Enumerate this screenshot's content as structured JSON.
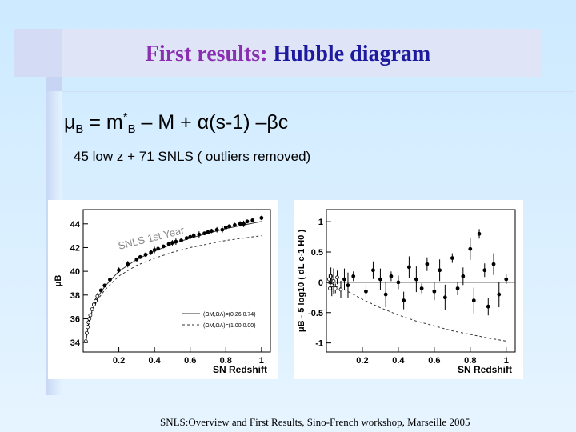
{
  "slide": {
    "title_part1": "First results:",
    "title_part2": "Hubble diagram",
    "formula": {
      "mu": "μ",
      "sub_B": "B",
      "eq": " = m",
      "sup_star": "*",
      "sub_B2": "B",
      "rest": " – M + α(s-1) –βc"
    },
    "subtitle": "45 low z + 71 SNLS ( outliers removed)",
    "footer": "SNLS:Overview and First Results, Sino-French workshop, Marseille 2005"
  },
  "chart_data": [
    {
      "type": "scatter",
      "xlabel": "SN Redshift",
      "ylabel": "μB",
      "xticks": [
        0.2,
        0.4,
        0.6,
        0.8,
        1
      ],
      "yticks": [
        34,
        36,
        38,
        40,
        42,
        44
      ],
      "xlim": [
        0,
        1.05
      ],
      "ylim": [
        33.2,
        45.2
      ],
      "annotation": "SNLS 1st Year",
      "legend_placement": "bottom-right",
      "legend": [
        "(ΩM,ΩΛ)=(0.26,0.74)",
        "(ΩM,ΩΛ)=(1.00,0.00)"
      ],
      "curves": {
        "solid_x": [
          0.015,
          0.03,
          0.05,
          0.08,
          0.12,
          0.2,
          0.3,
          0.4,
          0.5,
          0.6,
          0.7,
          0.8,
          0.9,
          1.0
        ],
        "solid_y": [
          34.0,
          35.6,
          36.7,
          37.8,
          38.7,
          40.0,
          41.0,
          41.7,
          42.3,
          42.8,
          43.2,
          43.6,
          43.9,
          44.2
        ],
        "dashed_y": [
          34.0,
          35.5,
          36.6,
          37.6,
          38.4,
          39.6,
          40.5,
          41.1,
          41.6,
          42.0,
          42.3,
          42.6,
          42.8,
          43.0
        ]
      },
      "points": {
        "x": [
          0.015,
          0.02,
          0.025,
          0.03,
          0.035,
          0.04,
          0.05,
          0.06,
          0.07,
          0.08,
          0.1,
          0.12,
          0.15,
          0.2,
          0.25,
          0.3,
          0.32,
          0.35,
          0.38,
          0.4,
          0.42,
          0.45,
          0.48,
          0.5,
          0.52,
          0.55,
          0.58,
          0.6,
          0.62,
          0.65,
          0.68,
          0.7,
          0.72,
          0.75,
          0.78,
          0.8,
          0.82,
          0.85,
          0.88,
          0.9,
          0.92,
          0.95,
          1.0
        ],
        "y": [
          34.1,
          34.8,
          35.3,
          35.7,
          36.0,
          36.3,
          36.8,
          37.2,
          37.5,
          37.9,
          38.4,
          38.8,
          39.3,
          40.1,
          40.6,
          41.0,
          41.2,
          41.4,
          41.6,
          41.8,
          41.9,
          42.1,
          42.3,
          42.4,
          42.5,
          42.6,
          42.8,
          42.9,
          43.0,
          43.1,
          43.2,
          43.3,
          43.4,
          43.5,
          43.5,
          43.7,
          43.8,
          43.9,
          44.0,
          44.0,
          44.2,
          44.3,
          44.5
        ]
      }
    },
    {
      "type": "scatter",
      "xlabel": "SN Redshift",
      "ylabel": "μB - 5 log10 ( dL c-1 H0 )",
      "xticks": [
        0.2,
        0.4,
        0.6,
        0.8,
        1
      ],
      "yticks": [
        -1,
        -0.5,
        0,
        0.5,
        1
      ],
      "xlim": [
        0,
        1.05
      ],
      "ylim": [
        -1.15,
        1.2
      ],
      "curves": {
        "solid_y_value": 0,
        "dashed_x": [
          0.0,
          0.1,
          0.2,
          0.3,
          0.4,
          0.5,
          0.6,
          0.7,
          0.8,
          0.9,
          1.0
        ],
        "dashed_y": [
          0.0,
          -0.12,
          -0.28,
          -0.42,
          -0.54,
          -0.64,
          -0.72,
          -0.8,
          -0.86,
          -0.92,
          -0.97
        ]
      },
      "points": {
        "x": [
          0.015,
          0.02,
          0.025,
          0.03,
          0.04,
          0.05,
          0.06,
          0.08,
          0.1,
          0.12,
          0.15,
          0.22,
          0.26,
          0.3,
          0.33,
          0.36,
          0.4,
          0.43,
          0.46,
          0.5,
          0.53,
          0.56,
          0.6,
          0.63,
          0.66,
          0.7,
          0.73,
          0.76,
          0.8,
          0.82,
          0.85,
          0.88,
          0.9,
          0.93,
          0.96,
          1.0
        ],
        "y": [
          0.05,
          -0.1,
          0.1,
          -0.05,
          0.02,
          -0.1,
          0.08,
          -0.12,
          0.05,
          -0.05,
          0.1,
          -0.15,
          0.2,
          0.05,
          -0.2,
          0.1,
          0.0,
          -0.3,
          0.25,
          0.05,
          -0.1,
          0.3,
          -0.15,
          0.2,
          -0.25,
          0.4,
          -0.1,
          0.1,
          0.55,
          -0.3,
          0.8,
          0.2,
          -0.4,
          0.3,
          -0.2,
          0.05
        ]
      }
    }
  ]
}
